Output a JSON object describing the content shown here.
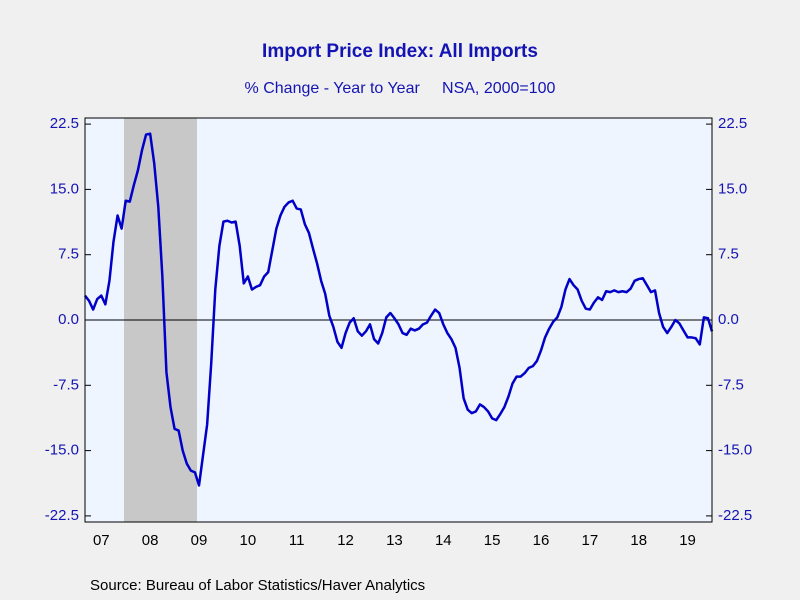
{
  "chart_data": {
    "type": "line",
    "title": "Import Price Index: All Imports",
    "subtitle": "% Change - Year to Year     NSA, 2000=100",
    "source": "Source:  Bureau of Labor Statistics/Haver Analytics",
    "categories": [
      null,
      null,
      null,
      null,
      "07",
      null,
      null,
      null,
      null,
      null,
      null,
      null,
      null,
      null,
      null,
      null,
      "08",
      null,
      null,
      null,
      null,
      null,
      null,
      null,
      null,
      null,
      null,
      null,
      "09",
      null,
      null,
      null,
      null,
      null,
      null,
      null,
      null,
      null,
      null,
      null,
      "10",
      null,
      null,
      null,
      null,
      null,
      null,
      null,
      null,
      null,
      null,
      null,
      "11",
      null,
      null,
      null,
      null,
      null,
      null,
      null,
      null,
      null,
      null,
      null,
      "12",
      null,
      null,
      null,
      null,
      null,
      null,
      null,
      null,
      null,
      null,
      null,
      "13",
      null,
      null,
      null,
      null,
      null,
      null,
      null,
      null,
      null,
      null,
      null,
      "14",
      null,
      null,
      null,
      null,
      null,
      null,
      null,
      null,
      null,
      null,
      null,
      "15",
      null,
      null,
      null,
      null,
      null,
      null,
      null,
      null,
      null,
      null,
      null,
      "16",
      null,
      null,
      null,
      null,
      null,
      null,
      null,
      null,
      null,
      null,
      null,
      "17",
      null,
      null,
      null,
      null,
      null,
      null,
      null,
      null,
      null,
      null,
      null,
      "18",
      null,
      null,
      null,
      null,
      null,
      null,
      null,
      null,
      null,
      null,
      null,
      "19",
      null,
      null,
      null,
      null,
      null,
      null
    ],
    "series": [
      {
        "color": "#0000c8",
        "values": [
          2.8,
          2.2,
          1.2,
          2.4,
          2.8,
          1.8,
          4.5,
          9.0,
          12.0,
          10.5,
          13.7,
          13.6,
          15.5,
          17.2,
          19.5,
          21.3,
          21.4,
          18.0,
          13.0,
          5.0,
          -6.0,
          -10.0,
          -12.5,
          -12.7,
          -15.0,
          -16.5,
          -17.3,
          -17.5,
          -19.0,
          -15.5,
          -12.0,
          -5.0,
          3.5,
          8.5,
          11.3,
          11.4,
          11.2,
          11.3,
          8.5,
          4.2,
          5.0,
          3.5,
          3.8,
          4.0,
          5.0,
          5.5,
          8.0,
          10.5,
          12.0,
          13.0,
          13.5,
          13.7,
          12.8,
          12.7,
          11.0,
          10.0,
          8.2,
          6.5,
          4.5,
          3.0,
          0.5,
          -0.8,
          -2.5,
          -3.2,
          -1.5,
          -0.3,
          0.2,
          -1.3,
          -1.8,
          -1.3,
          -0.5,
          -2.2,
          -2.7,
          -1.5,
          0.3,
          0.8,
          0.2,
          -0.5,
          -1.5,
          -1.7,
          -1.0,
          -1.2,
          -1.0,
          -0.5,
          -0.3,
          0.5,
          1.2,
          0.8,
          -0.5,
          -1.5,
          -2.2,
          -3.2,
          -5.5,
          -9.0,
          -10.3,
          -10.7,
          -10.5,
          -9.7,
          -10.0,
          -10.5,
          -11.3,
          -11.5,
          -10.8,
          -10.0,
          -8.8,
          -7.3,
          -6.5,
          -6.5,
          -6.1,
          -5.5,
          -5.3,
          -4.7,
          -3.5,
          -2.0,
          -1.0,
          -0.2,
          0.3,
          1.5,
          3.5,
          4.7,
          4.0,
          3.5,
          2.2,
          1.3,
          1.2,
          2.0,
          2.6,
          2.3,
          3.3,
          3.2,
          3.4,
          3.2,
          3.3,
          3.2,
          3.6,
          4.5,
          4.7,
          4.8,
          4.0,
          3.2,
          3.4,
          0.8,
          -0.8,
          -1.5,
          -0.8,
          0.0,
          -0.4,
          -1.2,
          -2.0,
          -2.0,
          -2.1,
          -2.8,
          0.3,
          0.2,
          -1.3
        ]
      }
    ],
    "ylim": [
      -23.2,
      23.2
    ],
    "yticks": [
      22.5,
      {
        "value": 15,
        "label": "15.0"
      },
      7.5,
      {
        "value": 0,
        "label": "0.0"
      },
      -7.5,
      {
        "value": -15,
        "label": "-15.0"
      },
      -22.5
    ]
  }
}
